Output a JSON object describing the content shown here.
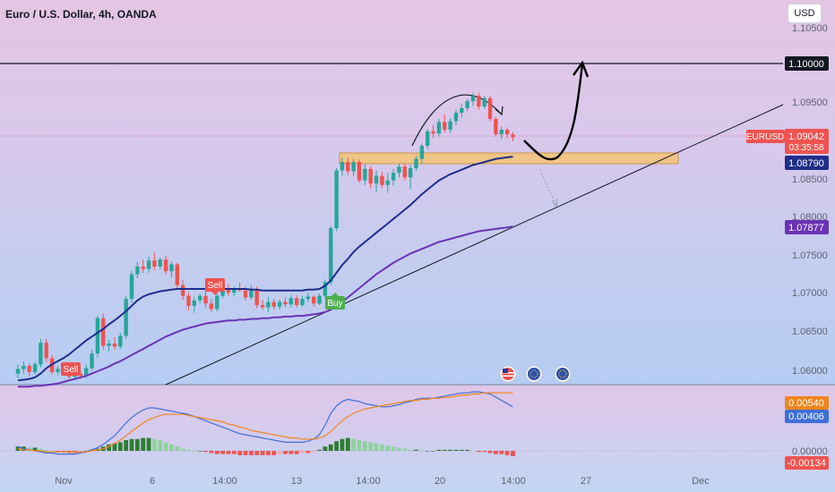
{
  "header": {
    "title": "Euro / U.S. Dollar, 4h, OANDA",
    "currency_button": "USD"
  },
  "price_axis": {
    "ticks": [
      "1.10500",
      "1.09500",
      "1.08500",
      "1.08000",
      "1.07500",
      "1.07000",
      "1.06500",
      "1.06000"
    ],
    "labels": {
      "resistance": "1.10000",
      "symbol": "EURUSD",
      "last": "1.09042",
      "countdown": "03:35:58",
      "ma_fast": "1.08790",
      "ma_slow": "1.07877"
    }
  },
  "time_axis": {
    "labels": [
      "Nov",
      "6",
      "14:00",
      "13",
      "14:00",
      "20",
      "14:00",
      "27",
      "Dec"
    ]
  },
  "signals": {
    "sell_1": "Sell",
    "sell_2": "Sell",
    "buy": "Buy"
  },
  "macd_axis": {
    "labels": [
      "0.00540",
      "0.00406",
      "0.00000",
      "-0.00134"
    ]
  },
  "colors": {
    "up": "#26a69a",
    "down": "#ef5350",
    "ma_fast": "#1f2e8a",
    "ma_slow": "#6a33b5",
    "macd": "#3f6fd8",
    "signal": "#f0851e",
    "zone": "#f6c474"
  },
  "chart_data": {
    "type": "candlestick",
    "symbol": "EURUSD",
    "timeframe": "4h",
    "candles": [
      [
        1.0597,
        1.0609,
        1.0591,
        1.0603
      ],
      [
        1.0603,
        1.0613,
        1.0597,
        1.0607
      ],
      [
        1.0607,
        1.061,
        1.0594,
        1.0599
      ],
      [
        1.0599,
        1.0612,
        1.0596,
        1.0609
      ],
      [
        1.0609,
        1.0642,
        1.0605,
        1.0637
      ],
      [
        1.0637,
        1.0642,
        1.0612,
        1.0617
      ],
      [
        1.0617,
        1.0621,
        1.0596,
        1.0599
      ],
      [
        1.0599,
        1.0607,
        1.0595,
        1.0603
      ],
      [
        1.0603,
        1.0611,
        1.0599,
        1.0606
      ],
      [
        1.0606,
        1.0608,
        1.059,
        1.0593
      ],
      [
        1.0593,
        1.0602,
        1.0589,
        1.0597
      ],
      [
        1.0597,
        1.0601,
        1.059,
        1.0594
      ],
      [
        1.0594,
        1.0609,
        1.0591,
        1.0604
      ],
      [
        1.0604,
        1.0628,
        1.0601,
        1.0623
      ],
      [
        1.0623,
        1.0672,
        1.0618,
        1.0669
      ],
      [
        1.0669,
        1.0675,
        1.0628,
        1.0633
      ],
      [
        1.0633,
        1.0641,
        1.0626,
        1.0636
      ],
      [
        1.0636,
        1.0644,
        1.0628,
        1.0632
      ],
      [
        1.0632,
        1.065,
        1.0629,
        1.0646
      ],
      [
        1.0646,
        1.0698,
        1.0642,
        1.0694
      ],
      [
        1.0694,
        1.0731,
        1.0689,
        1.0726
      ],
      [
        1.0726,
        1.0742,
        1.0721,
        1.0736
      ],
      [
        1.0736,
        1.0745,
        1.0728,
        1.0733
      ],
      [
        1.0733,
        1.0749,
        1.0728,
        1.0744
      ],
      [
        1.0744,
        1.0754,
        1.0731,
        1.0736
      ],
      [
        1.0736,
        1.0748,
        1.0732,
        1.0745
      ],
      [
        1.0745,
        1.075,
        1.0726,
        1.073
      ],
      [
        1.073,
        1.0742,
        1.0721,
        1.0739
      ],
      [
        1.0739,
        1.0741,
        1.0708,
        1.0712
      ],
      [
        1.0712,
        1.0719,
        1.0693,
        1.0698
      ],
      [
        1.0698,
        1.0703,
        1.0679,
        1.0685
      ],
      [
        1.0685,
        1.0697,
        1.0676,
        1.0692
      ],
      [
        1.0692,
        1.0701,
        1.0688,
        1.0698
      ],
      [
        1.0698,
        1.0706,
        1.0683,
        1.0688
      ],
      [
        1.0688,
        1.0694,
        1.0677,
        1.0681
      ],
      [
        1.0681,
        1.0702,
        1.0678,
        1.0698
      ],
      [
        1.0698,
        1.0712,
        1.0695,
        1.0708
      ],
      [
        1.0708,
        1.0713,
        1.0698,
        1.0702
      ],
      [
        1.0702,
        1.071,
        1.0697,
        1.0707
      ],
      [
        1.0707,
        1.0715,
        1.0703,
        1.0705
      ],
      [
        1.0705,
        1.071,
        1.0692,
        1.0696
      ],
      [
        1.0696,
        1.0712,
        1.0693,
        1.0707
      ],
      [
        1.0707,
        1.071,
        1.0682,
        1.0686
      ],
      [
        1.0686,
        1.0693,
        1.068,
        1.0683
      ],
      [
        1.0683,
        1.0697,
        1.0677,
        1.069
      ],
      [
        1.069,
        1.0694,
        1.068,
        1.0684
      ],
      [
        1.0684,
        1.0693,
        1.068,
        1.069
      ],
      [
        1.069,
        1.0696,
        1.0683,
        1.0687
      ],
      [
        1.0687,
        1.0699,
        1.0683,
        1.0695
      ],
      [
        1.0695,
        1.0699,
        1.0683,
        1.0686
      ],
      [
        1.0686,
        1.0698,
        1.0684,
        1.0694
      ],
      [
        1.0694,
        1.0702,
        1.069,
        1.0697
      ],
      [
        1.0697,
        1.0699,
        1.0684,
        1.0688
      ],
      [
        1.0688,
        1.0701,
        1.0686,
        1.0698
      ],
      [
        1.0698,
        1.0719,
        1.0695,
        1.0716
      ],
      [
        1.0716,
        1.0789,
        1.0712,
        1.0786
      ],
      [
        1.0786,
        1.0864,
        1.0782,
        1.0861
      ],
      [
        1.0861,
        1.0878,
        1.0854,
        1.0872
      ],
      [
        1.0872,
        1.0877,
        1.0855,
        1.086
      ],
      [
        1.086,
        1.0876,
        1.0854,
        1.0872
      ],
      [
        1.0872,
        1.0875,
        1.0845,
        1.0848
      ],
      [
        1.0848,
        1.0869,
        1.0842,
        1.0863
      ],
      [
        1.0863,
        1.0866,
        1.0838,
        1.0844
      ],
      [
        1.0844,
        1.0861,
        1.0833,
        1.0854
      ],
      [
        1.0854,
        1.0859,
        1.0838,
        1.0842
      ],
      [
        1.0842,
        1.0858,
        1.0832,
        1.0848
      ],
      [
        1.0848,
        1.0863,
        1.0841,
        1.0858
      ],
      [
        1.0858,
        1.087,
        1.0852,
        1.0866
      ],
      [
        1.0866,
        1.087,
        1.0848,
        1.0852
      ],
      [
        1.0852,
        1.0868,
        1.0837,
        1.0864
      ],
      [
        1.0864,
        1.088,
        1.086,
        1.0876
      ],
      [
        1.0876,
        1.0896,
        1.087,
        1.0893
      ],
      [
        1.0893,
        1.0915,
        1.0889,
        1.0912
      ],
      [
        1.0912,
        1.092,
        1.0903,
        1.0909
      ],
      [
        1.0909,
        1.0928,
        1.0905,
        1.0924
      ],
      [
        1.0924,
        1.0934,
        1.091,
        1.0914
      ],
      [
        1.0914,
        1.0929,
        1.091,
        1.0925
      ],
      [
        1.0925,
        1.094,
        1.092,
        1.0936
      ],
      [
        1.0936,
        1.0947,
        1.093,
        1.0942
      ],
      [
        1.0942,
        1.0954,
        1.0938,
        1.0951
      ],
      [
        1.0951,
        1.0962,
        1.0945,
        1.0958
      ],
      [
        1.0958,
        1.0962,
        1.094,
        1.0944
      ],
      [
        1.0944,
        1.0958,
        1.0941,
        1.0955
      ],
      [
        1.0955,
        1.0958,
        1.0925,
        1.0928
      ],
      [
        1.0928,
        1.093,
        1.0905,
        1.0908
      ],
      [
        1.0908,
        1.0918,
        1.0902,
        1.0914
      ],
      [
        1.0914,
        1.0917,
        1.0903,
        1.0908
      ],
      [
        1.0908,
        1.0911,
        1.0899,
        1.0904
      ]
    ],
    "ma_fast": [
      1.0588,
      1.0589,
      1.059,
      1.0592,
      1.0597,
      1.0604,
      1.0609,
      1.0613,
      1.0617,
      1.0622,
      1.0628,
      1.0634,
      1.064,
      1.0645,
      1.065,
      1.0655,
      1.0661,
      1.0666,
      1.0672,
      1.0678,
      1.0685,
      1.0692,
      1.0697,
      1.07,
      1.0702,
      1.0704,
      1.0705,
      1.0706,
      1.0707,
      1.0707,
      1.0707,
      1.0707,
      1.0707,
      1.0707,
      1.0706,
      1.0706,
      1.0707,
      1.0707,
      1.0707,
      1.0707,
      1.0707,
      1.0706,
      1.0706,
      1.0705,
      1.0705,
      1.0705,
      1.0705,
      1.0705,
      1.0705,
      1.0705,
      1.0705,
      1.0706,
      1.0706,
      1.0707,
      1.0711,
      1.0718,
      1.0728,
      1.0738,
      1.0746,
      1.0755,
      1.0762,
      1.0768,
      1.0774,
      1.078,
      1.0786,
      1.0792,
      1.0798,
      1.0804,
      1.081,
      1.0816,
      1.0823,
      1.083,
      1.0836,
      1.0842,
      1.0848,
      1.0852,
      1.0856,
      1.0859,
      1.0862,
      1.0865,
      1.0868,
      1.087,
      1.0872,
      1.0874,
      1.0876,
      1.0877,
      1.0878,
      1.0879
    ],
    "ma_slow": [
      1.058,
      1.058,
      1.058,
      1.0581,
      1.0581,
      1.0582,
      1.0583,
      1.0584,
      1.0586,
      1.0588,
      1.059,
      1.0592,
      1.0594,
      1.0597,
      1.06,
      1.0603,
      1.0606,
      1.061,
      1.0613,
      1.0617,
      1.0621,
      1.0625,
      1.0629,
      1.0633,
      1.0637,
      1.0641,
      1.0645,
      1.0648,
      1.0651,
      1.0654,
      1.0656,
      1.0658,
      1.066,
      1.0662,
      1.0663,
      1.0664,
      1.0665,
      1.0666,
      1.0666,
      1.0667,
      1.0667,
      1.0668,
      1.0668,
      1.0669,
      1.0669,
      1.067,
      1.067,
      1.0671,
      1.0671,
      1.0672,
      1.0672,
      1.0673,
      1.0674,
      1.0675,
      1.0677,
      1.068,
      1.0685,
      1.069,
      1.0696,
      1.0702,
      1.0708,
      1.0714,
      1.072,
      1.0726,
      1.0731,
      1.0736,
      1.0741,
      1.0745,
      1.0749,
      1.0753,
      1.0756,
      1.0759,
      1.0762,
      1.0765,
      1.0768,
      1.077,
      1.0772,
      1.0774,
      1.0776,
      1.0778,
      1.078,
      1.0782,
      1.0783,
      1.0784,
      1.0785,
      1.0786,
      1.0787,
      1.0788
    ],
    "resistance_level": 1.1,
    "demand_zone": [
      1.0867,
      1.0881
    ],
    "macd_hist": [
      0.0004,
      0.0004,
      0.0003,
      0.0003,
      0.0002,
      0.0001,
      0.0,
      -0.0001,
      -0.0001,
      -0.0002,
      -0.0002,
      -0.0001,
      0.0,
      0.0001,
      0.0002,
      0.0004,
      0.0006,
      0.0007,
      0.0008,
      0.001,
      0.0011,
      0.0011,
      0.0012,
      0.0012,
      0.0011,
      0.001,
      0.0008,
      0.0006,
      0.0004,
      0.0002,
      0.0001,
      0.0,
      0.0,
      -0.0001,
      -0.0002,
      -0.0003,
      -0.0003,
      -0.0003,
      -0.0003,
      -0.0004,
      -0.0004,
      -0.0004,
      -0.0004,
      -0.0004,
      -0.0004,
      -0.0004,
      -0.0003,
      -0.0003,
      -0.0003,
      -0.0003,
      -0.0002,
      -0.0002,
      -0.0001,
      0.0001,
      0.0004,
      0.0006,
      0.0009,
      0.0011,
      0.0012,
      0.0011,
      0.001,
      0.0009,
      0.0008,
      0.0007,
      0.0006,
      0.0005,
      0.0004,
      0.0003,
      0.0002,
      0.0001,
      0.0001,
      0.0,
      0.0,
      0.0,
      0.0001,
      0.0001,
      0.0001,
      0.0001,
      0.0001,
      0.0001,
      0.0,
      -0.0001,
      -0.0001,
      -0.0002,
      -0.0003,
      -0.0003,
      -0.0004,
      -0.0005
    ],
    "macd_line": [
      0.0004,
      0.0002,
      0.0001,
      0.0,
      -0.0001,
      -0.0002,
      -0.0002,
      -0.0003,
      -0.0003,
      -0.0003,
      -0.0003,
      -0.0002,
      -0.0001,
      0.0001,
      0.0003,
      0.0006,
      0.001,
      0.0014,
      0.002,
      0.0026,
      0.0031,
      0.0035,
      0.0038,
      0.004,
      0.004,
      0.0039,
      0.0038,
      0.0037,
      0.0036,
      0.0035,
      0.0034,
      0.0032,
      0.003,
      0.0028,
      0.0026,
      0.0024,
      0.0022,
      0.002,
      0.0018,
      0.0016,
      0.0015,
      0.0014,
      0.0013,
      0.0012,
      0.0011,
      0.001,
      0.0009,
      0.0008,
      0.0008,
      0.0008,
      0.0008,
      0.0009,
      0.0011,
      0.0015,
      0.0024,
      0.0035,
      0.0042,
      0.0046,
      0.0048,
      0.0047,
      0.0046,
      0.0044,
      0.0043,
      0.0042,
      0.0041,
      0.0041,
      0.0042,
      0.0043,
      0.0045,
      0.0046,
      0.0048,
      0.0049,
      0.0049,
      0.0049,
      0.005,
      0.0051,
      0.0052,
      0.0053,
      0.0054,
      0.0054,
      0.0055,
      0.0055,
      0.0054,
      0.0053,
      0.005,
      0.0047,
      0.0044,
      0.0041
    ],
    "signal_line": [
      0.0002,
      0.0001,
      0.0001,
      0.0,
      0.0,
      -0.0001,
      -0.0001,
      -0.0001,
      -0.0001,
      -0.0001,
      -0.0001,
      -0.0001,
      -0.0001,
      0.0,
      0.0001,
      0.0002,
      0.0004,
      0.0007,
      0.001,
      0.0014,
      0.0018,
      0.0022,
      0.0026,
      0.0029,
      0.0031,
      0.0033,
      0.0034,
      0.0034,
      0.0034,
      0.0034,
      0.0033,
      0.0032,
      0.0031,
      0.003,
      0.0029,
      0.0028,
      0.0027,
      0.0025,
      0.0024,
      0.0022,
      0.0021,
      0.0019,
      0.0018,
      0.0017,
      0.0016,
      0.0015,
      0.0014,
      0.0013,
      0.0012,
      0.0012,
      0.0011,
      0.0011,
      0.0011,
      0.0012,
      0.0014,
      0.0018,
      0.0023,
      0.0028,
      0.0032,
      0.0035,
      0.0037,
      0.0039,
      0.004,
      0.0041,
      0.0042,
      0.0043,
      0.0044,
      0.0045,
      0.0046,
      0.0047,
      0.0047,
      0.0048,
      0.0048,
      0.0049,
      0.0049,
      0.005,
      0.005,
      0.0051,
      0.0052,
      0.0052,
      0.0053,
      0.0053,
      0.0054,
      0.0054,
      0.0054,
      0.0054,
      0.0054,
      0.0054
    ]
  }
}
